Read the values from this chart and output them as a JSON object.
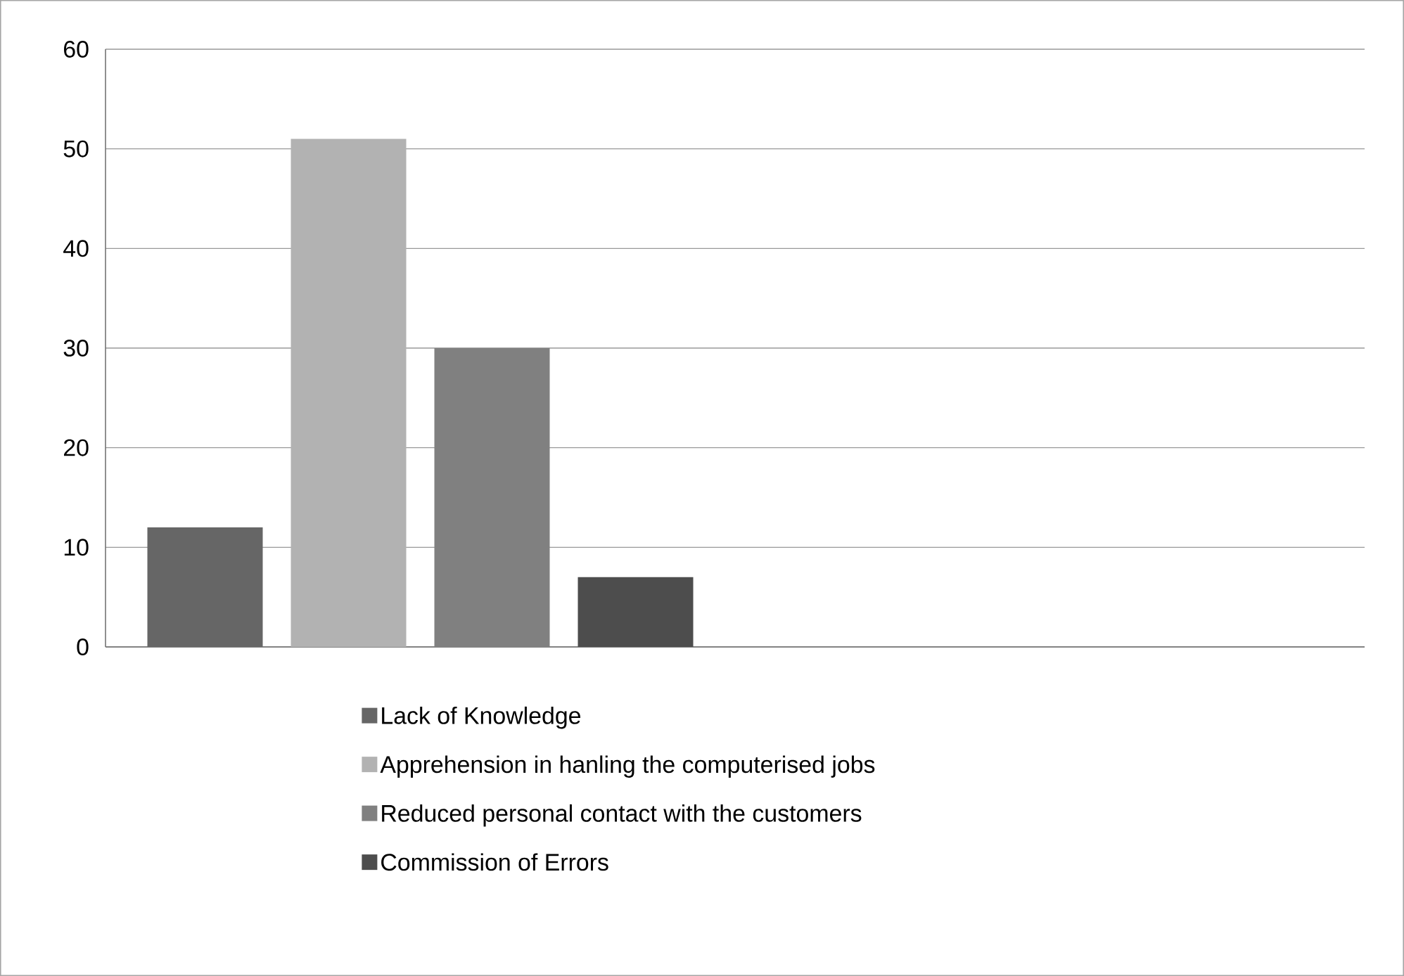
{
  "chart_data": {
    "type": "bar",
    "categories": [
      null,
      null
    ],
    "series": [
      {
        "name": "Lack of Knowledge",
        "color": "#666666",
        "values": [
          12,
          null
        ]
      },
      {
        "name": "Apprehension in hanling the computerised jobs",
        "color": "#b2b2b2",
        "values": [
          51,
          null
        ]
      },
      {
        "name": "Reduced personal contact with the customers",
        "color": "#808080",
        "values": [
          30,
          null
        ]
      },
      {
        "name": "Commission of Errors",
        "color": "#4d4d4d",
        "values": [
          7,
          null
        ]
      }
    ],
    "ylim": [
      0,
      60
    ],
    "yticks": [
      0,
      10,
      20,
      30,
      40,
      50,
      60
    ],
    "grid": "y",
    "legend": "bottom",
    "tick_labels": "y"
  }
}
